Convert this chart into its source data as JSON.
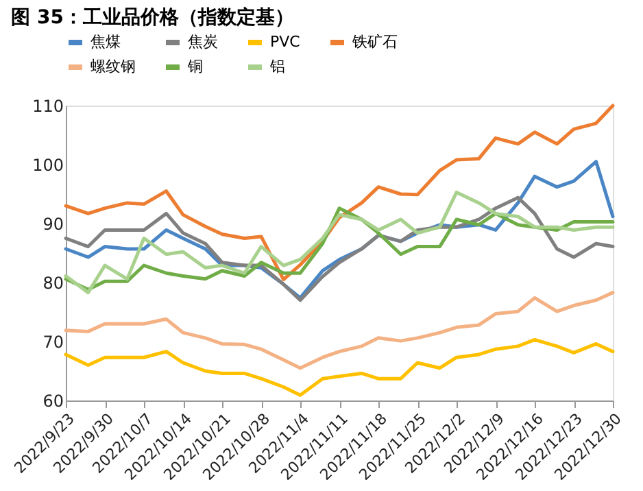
{
  "chart_data": {
    "type": "line",
    "title": "图 35：工业品价格（指数定基）",
    "x": [
      "2022-09-23",
      "2022-09-27",
      "2022-09-30",
      "2022-10-04",
      "2022-10-07",
      "2022-10-11",
      "2022-10-14",
      "2022-10-18",
      "2022-10-21",
      "2022-10-25",
      "2022-10-28",
      "2022-11-01",
      "2022-11-04",
      "2022-11-08",
      "2022-11-11",
      "2022-11-15",
      "2022-11-18",
      "2022-11-22",
      "2022-11-25",
      "2022-11-29",
      "2022-12-02",
      "2022-12-06",
      "2022-12-09",
      "2022-12-13",
      "2022-12-16",
      "2022-12-20",
      "2022-12-23",
      "2022-12-27",
      "2022-12-30"
    ],
    "series": [
      {
        "name": "焦煤",
        "color": "#4a86c5",
        "values": [
          85.7,
          84.3,
          86.1,
          85.7,
          85.7,
          88.9,
          87.5,
          85.7,
          82.9,
          82.9,
          82.5,
          79.7,
          77.4,
          82.0,
          83.9,
          85.7,
          88.0,
          87.0,
          88.4,
          89.8,
          89.4,
          89.8,
          88.9,
          93.5,
          98.0,
          96.2,
          97.2,
          100.5,
          91.2
        ]
      },
      {
        "name": "焦炭",
        "color": "#808080",
        "values": [
          87.5,
          86.1,
          88.9,
          88.9,
          88.9,
          91.7,
          88.4,
          86.6,
          83.4,
          82.9,
          82.9,
          79.7,
          77.0,
          81.0,
          83.4,
          85.7,
          88.0,
          87.0,
          88.9,
          89.4,
          89.4,
          90.7,
          92.6,
          94.4,
          91.7,
          85.7,
          84.3,
          86.6,
          86.1
        ]
      },
      {
        "name": "PVC",
        "color": "#ffc000",
        "values": [
          67.8,
          66.0,
          67.3,
          67.3,
          67.3,
          68.3,
          66.4,
          65.0,
          64.6,
          64.6,
          63.7,
          62.3,
          60.9,
          63.7,
          64.1,
          64.6,
          63.7,
          63.7,
          66.4,
          65.5,
          67.3,
          67.8,
          68.7,
          69.2,
          70.3,
          69.2,
          68.1,
          69.6,
          68.3
        ]
      },
      {
        "name": "铁矿石",
        "color": "#ed7d31",
        "values": [
          93.0,
          91.7,
          92.6,
          93.5,
          93.3,
          95.5,
          91.5,
          89.5,
          88.2,
          87.5,
          87.8,
          80.5,
          83.0,
          87.0,
          91.0,
          93.5,
          96.2,
          95.0,
          94.9,
          99.0,
          100.8,
          101.0,
          104.5,
          103.5,
          105.5,
          103.5,
          106.0,
          107.0,
          110.0
        ]
      },
      {
        "name": "螺纹钢",
        "color": "#f4b183",
        "values": [
          71.9,
          71.7,
          73.0,
          73.0,
          73.0,
          73.8,
          71.5,
          70.6,
          69.6,
          69.5,
          68.7,
          66.9,
          65.5,
          67.3,
          68.3,
          69.2,
          70.6,
          70.1,
          70.6,
          71.5,
          72.4,
          72.8,
          74.7,
          75.1,
          77.4,
          75.1,
          76.1,
          77.0,
          78.3
        ]
      },
      {
        "name": "铜",
        "color": "#70ad47",
        "values": [
          80.6,
          78.8,
          80.2,
          80.2,
          82.9,
          81.6,
          81.1,
          80.6,
          82.0,
          81.1,
          83.4,
          81.6,
          81.6,
          86.6,
          92.6,
          90.7,
          88.4,
          84.8,
          86.1,
          86.1,
          90.7,
          89.8,
          91.7,
          89.8,
          89.4,
          88.9,
          90.3,
          90.3,
          90.3
        ]
      },
      {
        "name": "铝",
        "color": "#a9d18e",
        "values": [
          81.1,
          78.3,
          82.9,
          80.6,
          87.5,
          84.8,
          85.2,
          82.5,
          82.9,
          81.6,
          86.1,
          82.9,
          83.9,
          87.5,
          91.5,
          90.7,
          88.9,
          90.7,
          88.4,
          89.4,
          95.3,
          93.5,
          91.7,
          91.2,
          89.4,
          89.4,
          88.9,
          89.4,
          89.4
        ]
      }
    ],
    "xlim": [
      "2022-09-23",
      "2022-12-30"
    ],
    "xticks": [
      {
        "value": "2022-09-23",
        "label": "2022/9/23"
      },
      {
        "value": "2022-09-30",
        "label": "2022/9/30"
      },
      {
        "value": "2022-10-07",
        "label": "2022/10/7"
      },
      {
        "value": "2022-10-14",
        "label": "2022/10/14"
      },
      {
        "value": "2022-10-21",
        "label": "2022/10/21"
      },
      {
        "value": "2022-10-28",
        "label": "2022/10/28"
      },
      {
        "value": "2022-11-04",
        "label": "2022/11/4"
      },
      {
        "value": "2022-11-11",
        "label": "2022/11/11"
      },
      {
        "value": "2022-11-18",
        "label": "2022/11/18"
      },
      {
        "value": "2022-11-25",
        "label": "2022/11/25"
      },
      {
        "value": "2022-12-02",
        "label": "2022/12/2"
      },
      {
        "value": "2022-12-09",
        "label": "2022/12/9"
      },
      {
        "value": "2022-12-16",
        "label": "2022/12/16"
      },
      {
        "value": "2022-12-23",
        "label": "2022/12/23"
      },
      {
        "value": "2022-12-30",
        "label": "2022/12/30"
      }
    ],
    "ylim": [
      60,
      110
    ],
    "yticks": [
      60,
      70,
      80,
      90,
      100,
      110
    ],
    "grid": false,
    "legend": "top",
    "marker": "none",
    "line_style": "solid"
  }
}
